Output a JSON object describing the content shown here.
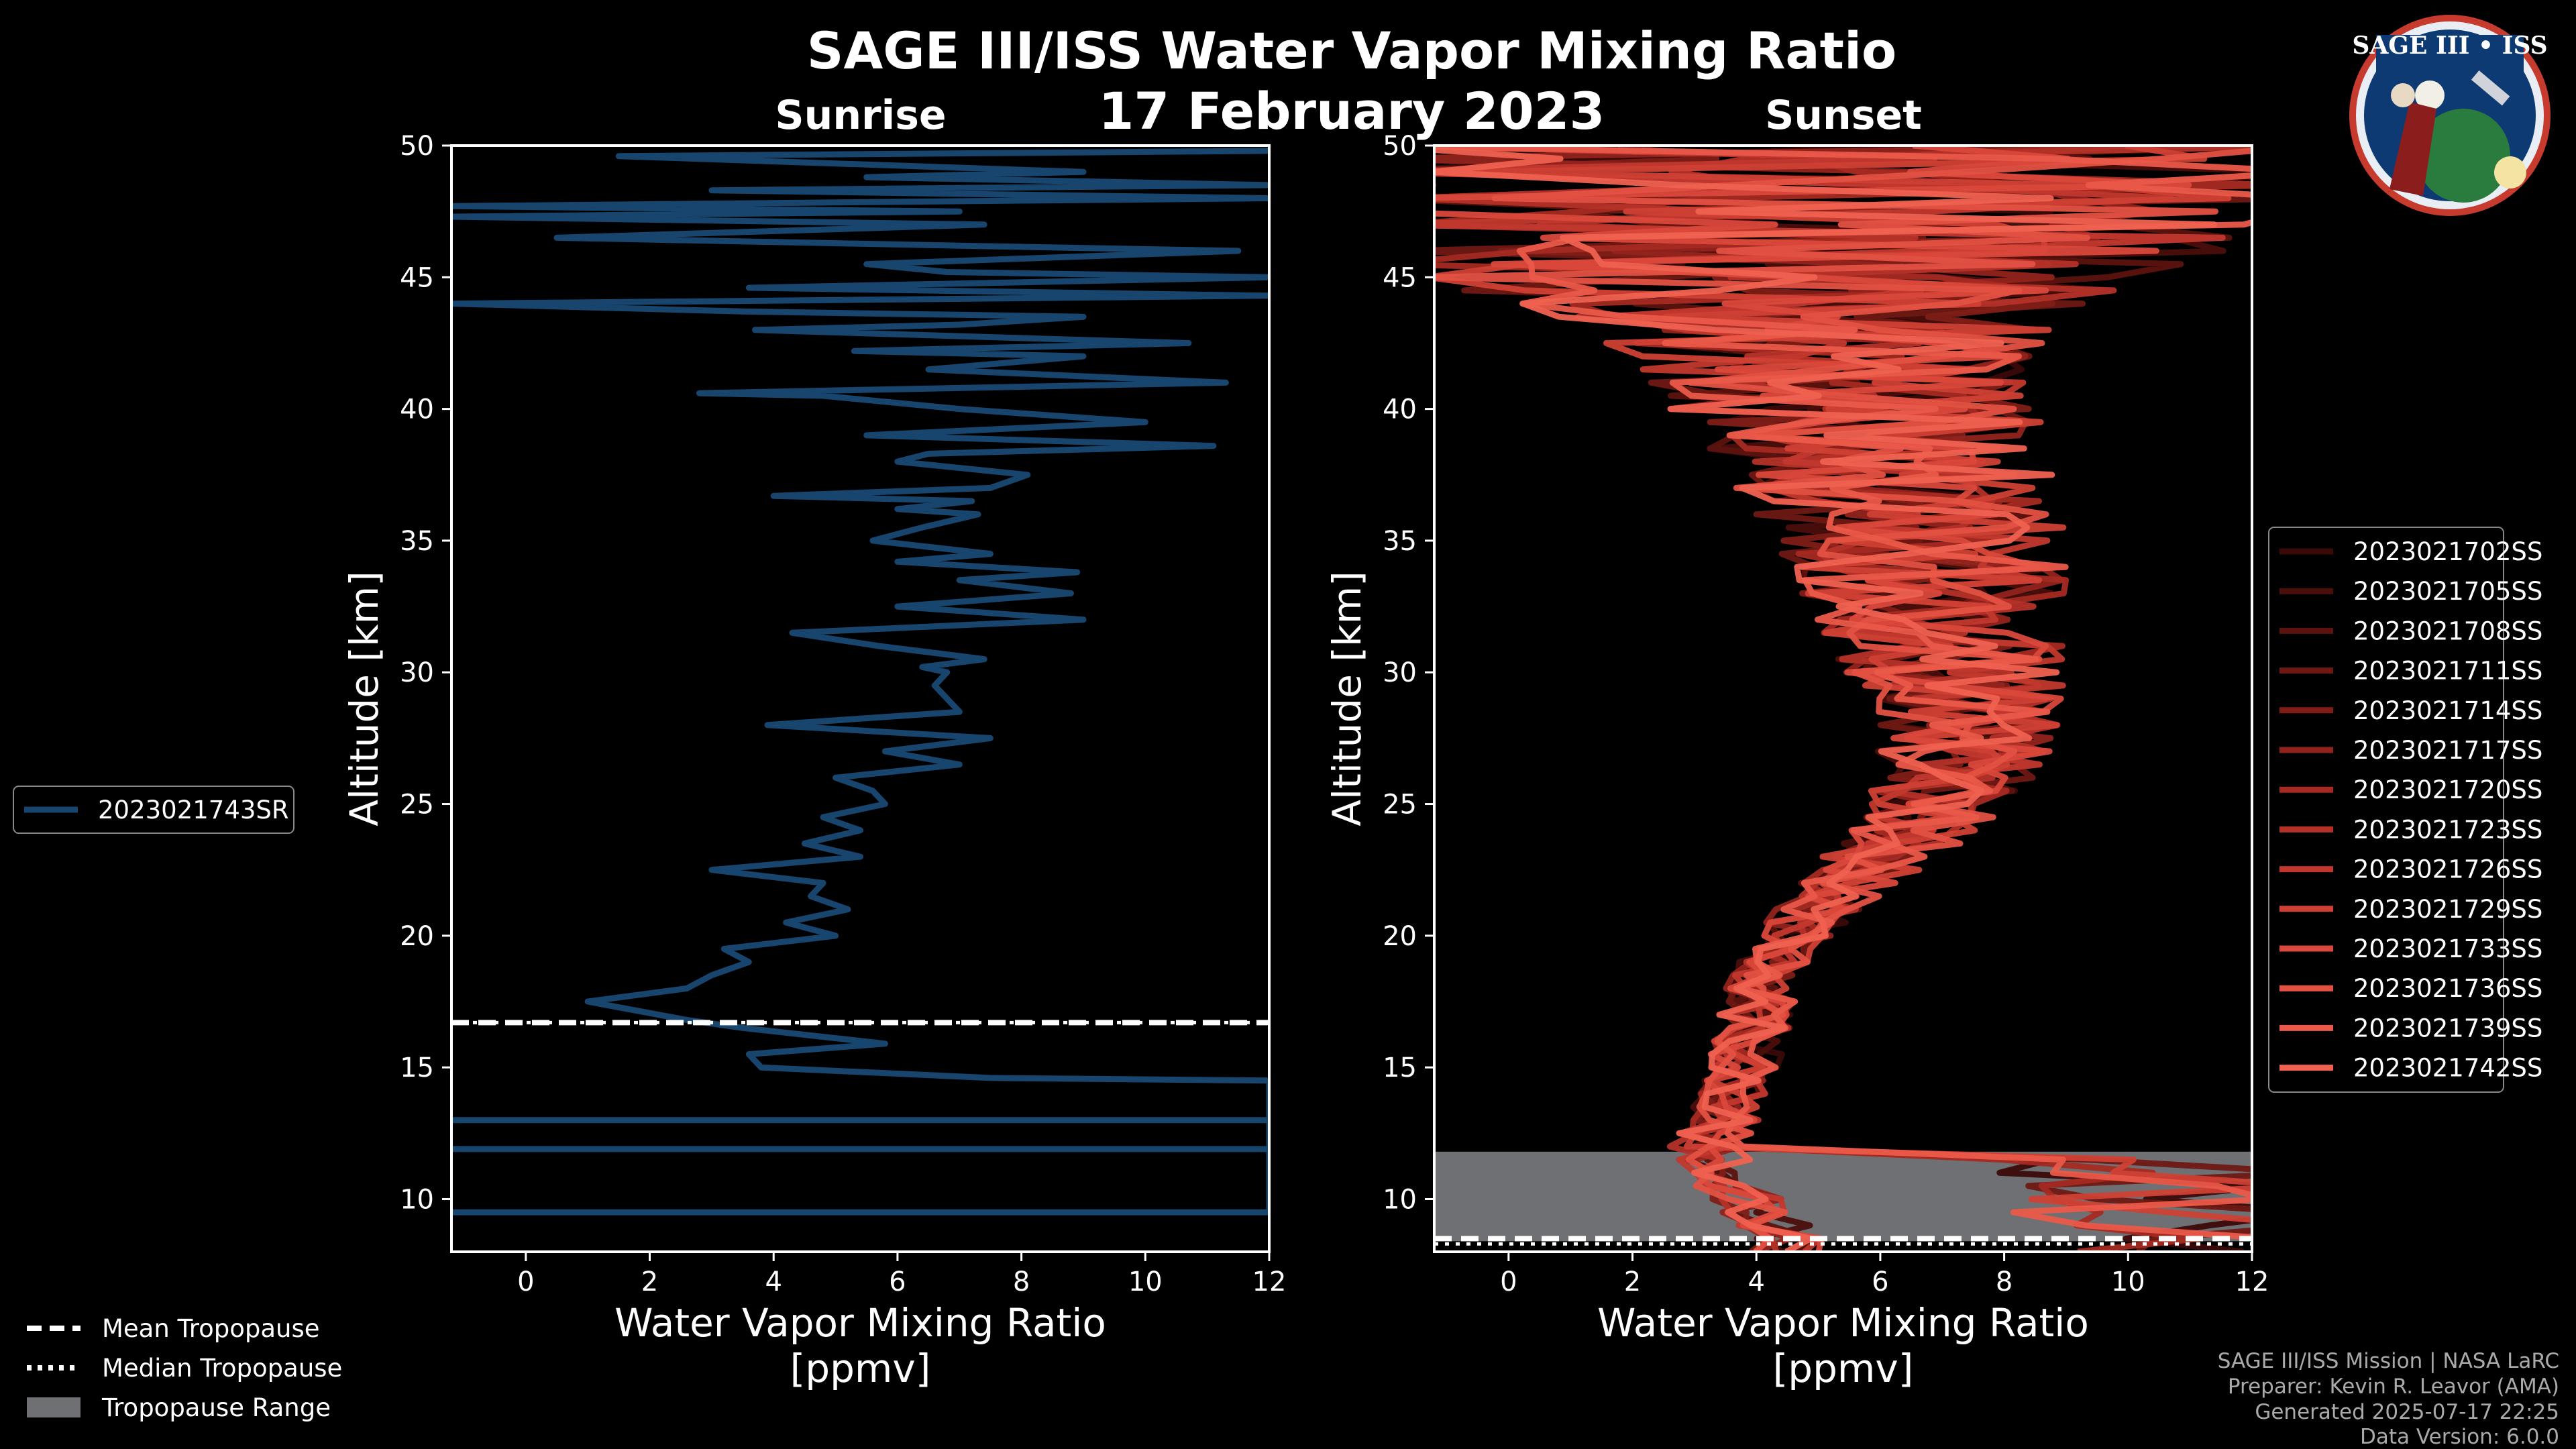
{
  "figure": {
    "title": "SAGE III/ISS Water Vapor Mixing Ratio",
    "date": "17 February 2023",
    "credits": [
      "SAGE III/ISS Mission | NASA LaRC",
      "Preparer: Kevin R. Leavor (AMA)",
      "Generated 2025-07-17 22:25",
      "Data Version: 6.0.0"
    ],
    "logo_text": "SAGE III • ISS",
    "colors": {
      "background": "#000000",
      "sunrise": "#17456e",
      "tropopause_range": "#6e7073"
    }
  },
  "tropopause_legend": {
    "mean": "Mean Tropopause",
    "median": "Median Tropopause",
    "range": "Tropopause Range"
  },
  "chart_data": [
    {
      "type": "line",
      "title": "Sunrise",
      "xlabel": "Water Vapor Mixing Ratio\n[ppmv]",
      "ylabel": "Altitude [km]",
      "xlim": [
        -1.2,
        12
      ],
      "ylim": [
        8,
        50
      ],
      "xticks": [
        0,
        2,
        4,
        6,
        8,
        10,
        12
      ],
      "yticks": [
        10,
        15,
        20,
        25,
        30,
        35,
        40,
        45,
        50
      ],
      "legend_position": "outside-left",
      "tropopause": {
        "mean": 16.7,
        "median": 16.7,
        "range": null
      },
      "series": [
        {
          "name": "2023021743SR",
          "color": "#17456e",
          "points": [
            [
              12,
              9.5
            ],
            [
              -1.2,
              9.5
            ],
            [
              12,
              9.5
            ],
            [
              12,
              11.9
            ],
            [
              -1.2,
              11.9
            ],
            [
              12,
              11.9
            ],
            [
              12,
              13.0
            ],
            [
              -1.2,
              13.0
            ],
            [
              12,
              13.0
            ],
            [
              12,
              14.5
            ],
            [
              7.5,
              14.6
            ],
            [
              3.8,
              15.0
            ],
            [
              3.6,
              15.5
            ],
            [
              5.8,
              15.9
            ],
            [
              3.5,
              16.5
            ],
            [
              2.6,
              16.8
            ],
            [
              1.0,
              17.5
            ],
            [
              2.6,
              18.0
            ],
            [
              3.0,
              18.5
            ],
            [
              3.6,
              19.0
            ],
            [
              3.2,
              19.5
            ],
            [
              5.0,
              20.0
            ],
            [
              4.2,
              20.5
            ],
            [
              5.2,
              21.0
            ],
            [
              4.6,
              21.5
            ],
            [
              4.8,
              22.0
            ],
            [
              3.0,
              22.5
            ],
            [
              5.4,
              23.0
            ],
            [
              4.5,
              23.5
            ],
            [
              5.4,
              24.0
            ],
            [
              4.8,
              24.5
            ],
            [
              5.8,
              25.0
            ],
            [
              5.6,
              25.5
            ],
            [
              5.0,
              26.0
            ],
            [
              7.0,
              26.5
            ],
            [
              5.8,
              27.0
            ],
            [
              7.5,
              27.5
            ],
            [
              3.9,
              28.0
            ],
            [
              7.0,
              28.5
            ],
            [
              6.6,
              29.5
            ],
            [
              6.8,
              30.0
            ],
            [
              6.4,
              30.2
            ],
            [
              7.4,
              30.5
            ],
            [
              5.7,
              31.0
            ],
            [
              4.3,
              31.5
            ],
            [
              9.0,
              32.0
            ],
            [
              6.0,
              32.5
            ],
            [
              8.8,
              33.0
            ],
            [
              7.0,
              33.5
            ],
            [
              8.9,
              33.8
            ],
            [
              6.0,
              34.2
            ],
            [
              7.5,
              34.5
            ],
            [
              5.6,
              35.0
            ],
            [
              6.4,
              35.5
            ],
            [
              7.3,
              36.0
            ],
            [
              6.0,
              36.2
            ],
            [
              7.2,
              36.5
            ],
            [
              4.0,
              36.7
            ],
            [
              7.5,
              37.0
            ],
            [
              8.1,
              37.5
            ],
            [
              6.0,
              38.0
            ],
            [
              6.5,
              38.3
            ],
            [
              11.1,
              38.6
            ],
            [
              5.5,
              39.0
            ],
            [
              10.0,
              39.5
            ],
            [
              7.0,
              40.0
            ],
            [
              4.8,
              40.5
            ],
            [
              2.8,
              40.6
            ],
            [
              11.3,
              41.0
            ],
            [
              6.5,
              41.5
            ],
            [
              9.0,
              42.0
            ],
            [
              5.3,
              42.2
            ],
            [
              10.7,
              42.5
            ],
            [
              3.7,
              43.0
            ],
            [
              7.0,
              43.2
            ],
            [
              9.0,
              43.5
            ],
            [
              3.5,
              43.7
            ],
            [
              -1.2,
              44.0
            ],
            [
              3.5,
              44.1
            ],
            [
              12,
              44.3
            ],
            [
              3.6,
              44.6
            ],
            [
              12,
              45.0
            ],
            [
              6.8,
              45.2
            ],
            [
              5.5,
              45.5
            ],
            [
              11.5,
              46.0
            ],
            [
              7.0,
              46.2
            ],
            [
              0.5,
              46.5
            ],
            [
              7.4,
              47.0
            ],
            [
              -1.2,
              47.3
            ],
            [
              7.0,
              47.5
            ],
            [
              -1.2,
              47.7
            ],
            [
              12,
              48.0
            ],
            [
              3.0,
              48.3
            ],
            [
              12,
              48.5
            ],
            [
              5.5,
              48.8
            ],
            [
              9.0,
              49.0
            ],
            [
              1.5,
              49.6
            ],
            [
              12,
              49.8
            ]
          ]
        }
      ]
    },
    {
      "type": "line",
      "title": "Sunset",
      "xlabel": "Water Vapor Mixing Ratio\n[ppmv]",
      "ylabel": "Altitude [km]",
      "xlim": [
        -1.2,
        12
      ],
      "ylim": [
        8,
        50
      ],
      "xticks": [
        0,
        2,
        4,
        6,
        8,
        10,
        12
      ],
      "yticks": [
        10,
        15,
        20,
        25,
        30,
        35,
        40,
        45,
        50
      ],
      "legend_position": "outside-right",
      "tropopause": {
        "mean": 8.5,
        "median": 8.3,
        "range": [
          8.4,
          11.8
        ]
      },
      "profile_mean": [
        [
          4.5,
          8.5
        ],
        [
          3.6,
          10.5
        ],
        [
          3.2,
          12.0
        ],
        [
          3.5,
          13.0
        ],
        [
          3.6,
          14.0
        ],
        [
          3.8,
          15.0
        ],
        [
          3.9,
          16.0
        ],
        [
          4.0,
          17.0
        ],
        [
          4.1,
          18.0
        ],
        [
          4.3,
          19.0
        ],
        [
          4.6,
          20.0
        ],
        [
          5.0,
          21.0
        ],
        [
          5.5,
          22.0
        ],
        [
          6.0,
          23.0
        ],
        [
          6.6,
          24.0
        ],
        [
          7.0,
          25.0
        ],
        [
          7.2,
          26.0
        ],
        [
          7.4,
          27.0
        ],
        [
          7.4,
          28.0
        ],
        [
          7.3,
          29.0
        ],
        [
          7.2,
          30.0
        ],
        [
          7.1,
          31.0
        ],
        [
          7.0,
          32.0
        ],
        [
          6.9,
          33.0
        ],
        [
          6.8,
          34.0
        ],
        [
          6.7,
          35.0
        ],
        [
          6.5,
          36.0
        ],
        [
          6.3,
          37.0
        ],
        [
          6.0,
          38.0
        ],
        [
          5.8,
          39.0
        ],
        [
          5.6,
          40.0
        ],
        [
          5.4,
          41.0
        ],
        [
          5.2,
          42.0
        ],
        [
          5.0,
          43.0
        ],
        [
          4.9,
          44.0
        ],
        [
          4.8,
          45.0
        ],
        [
          4.7,
          46.0
        ],
        [
          4.6,
          47.0
        ],
        [
          4.5,
          48.0
        ],
        [
          4.5,
          49.0
        ],
        [
          4.5,
          50.0
        ]
      ],
      "series": [
        {
          "name": "2023021702SS",
          "color": "#3a0a08"
        },
        {
          "name": "2023021705SS",
          "color": "#4a0e0b"
        },
        {
          "name": "2023021708SS",
          "color": "#5c130f"
        },
        {
          "name": "2023021711SS",
          "color": "#6e1813"
        },
        {
          "name": "2023021714SS",
          "color": "#801d17"
        },
        {
          "name": "2023021717SS",
          "color": "#92231c"
        },
        {
          "name": "2023021720SS",
          "color": "#a42a22"
        },
        {
          "name": "2023021723SS",
          "color": "#b43128"
        },
        {
          "name": "2023021726SS",
          "color": "#c2382e"
        },
        {
          "name": "2023021729SS",
          "color": "#cf4034"
        },
        {
          "name": "2023021733SS",
          "color": "#da483b"
        },
        {
          "name": "2023021736SS",
          "color": "#e35142"
        },
        {
          "name": "2023021739SS",
          "color": "#ea5949"
        },
        {
          "name": "2023021742SS",
          "color": "#ef6150"
        }
      ]
    }
  ]
}
